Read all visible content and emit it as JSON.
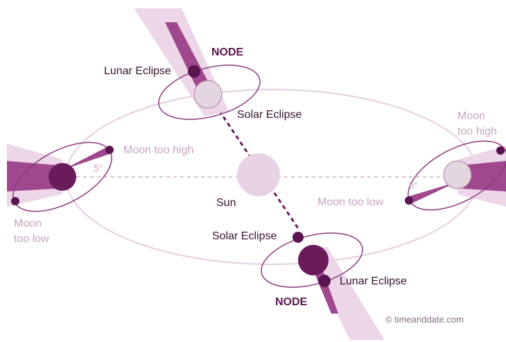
{
  "labels": {
    "node_top": "NODE",
    "lunar_top": "Lunar Eclipse",
    "solar_top": "Solar Eclipse",
    "left_high": "Moon too high",
    "left_angle": "5°",
    "left_low": [
      "Moon",
      "too low"
    ],
    "sun": "Sun",
    "right_high": [
      "Moon",
      "too high"
    ],
    "right_angle": "5°",
    "right_low": "Moon too low",
    "solar_bottom": "Solar Eclipse",
    "lunar_bottom": "Lunar Eclipse",
    "node_bottom": "NODE",
    "credit": "© timeanddate.com"
  }
}
